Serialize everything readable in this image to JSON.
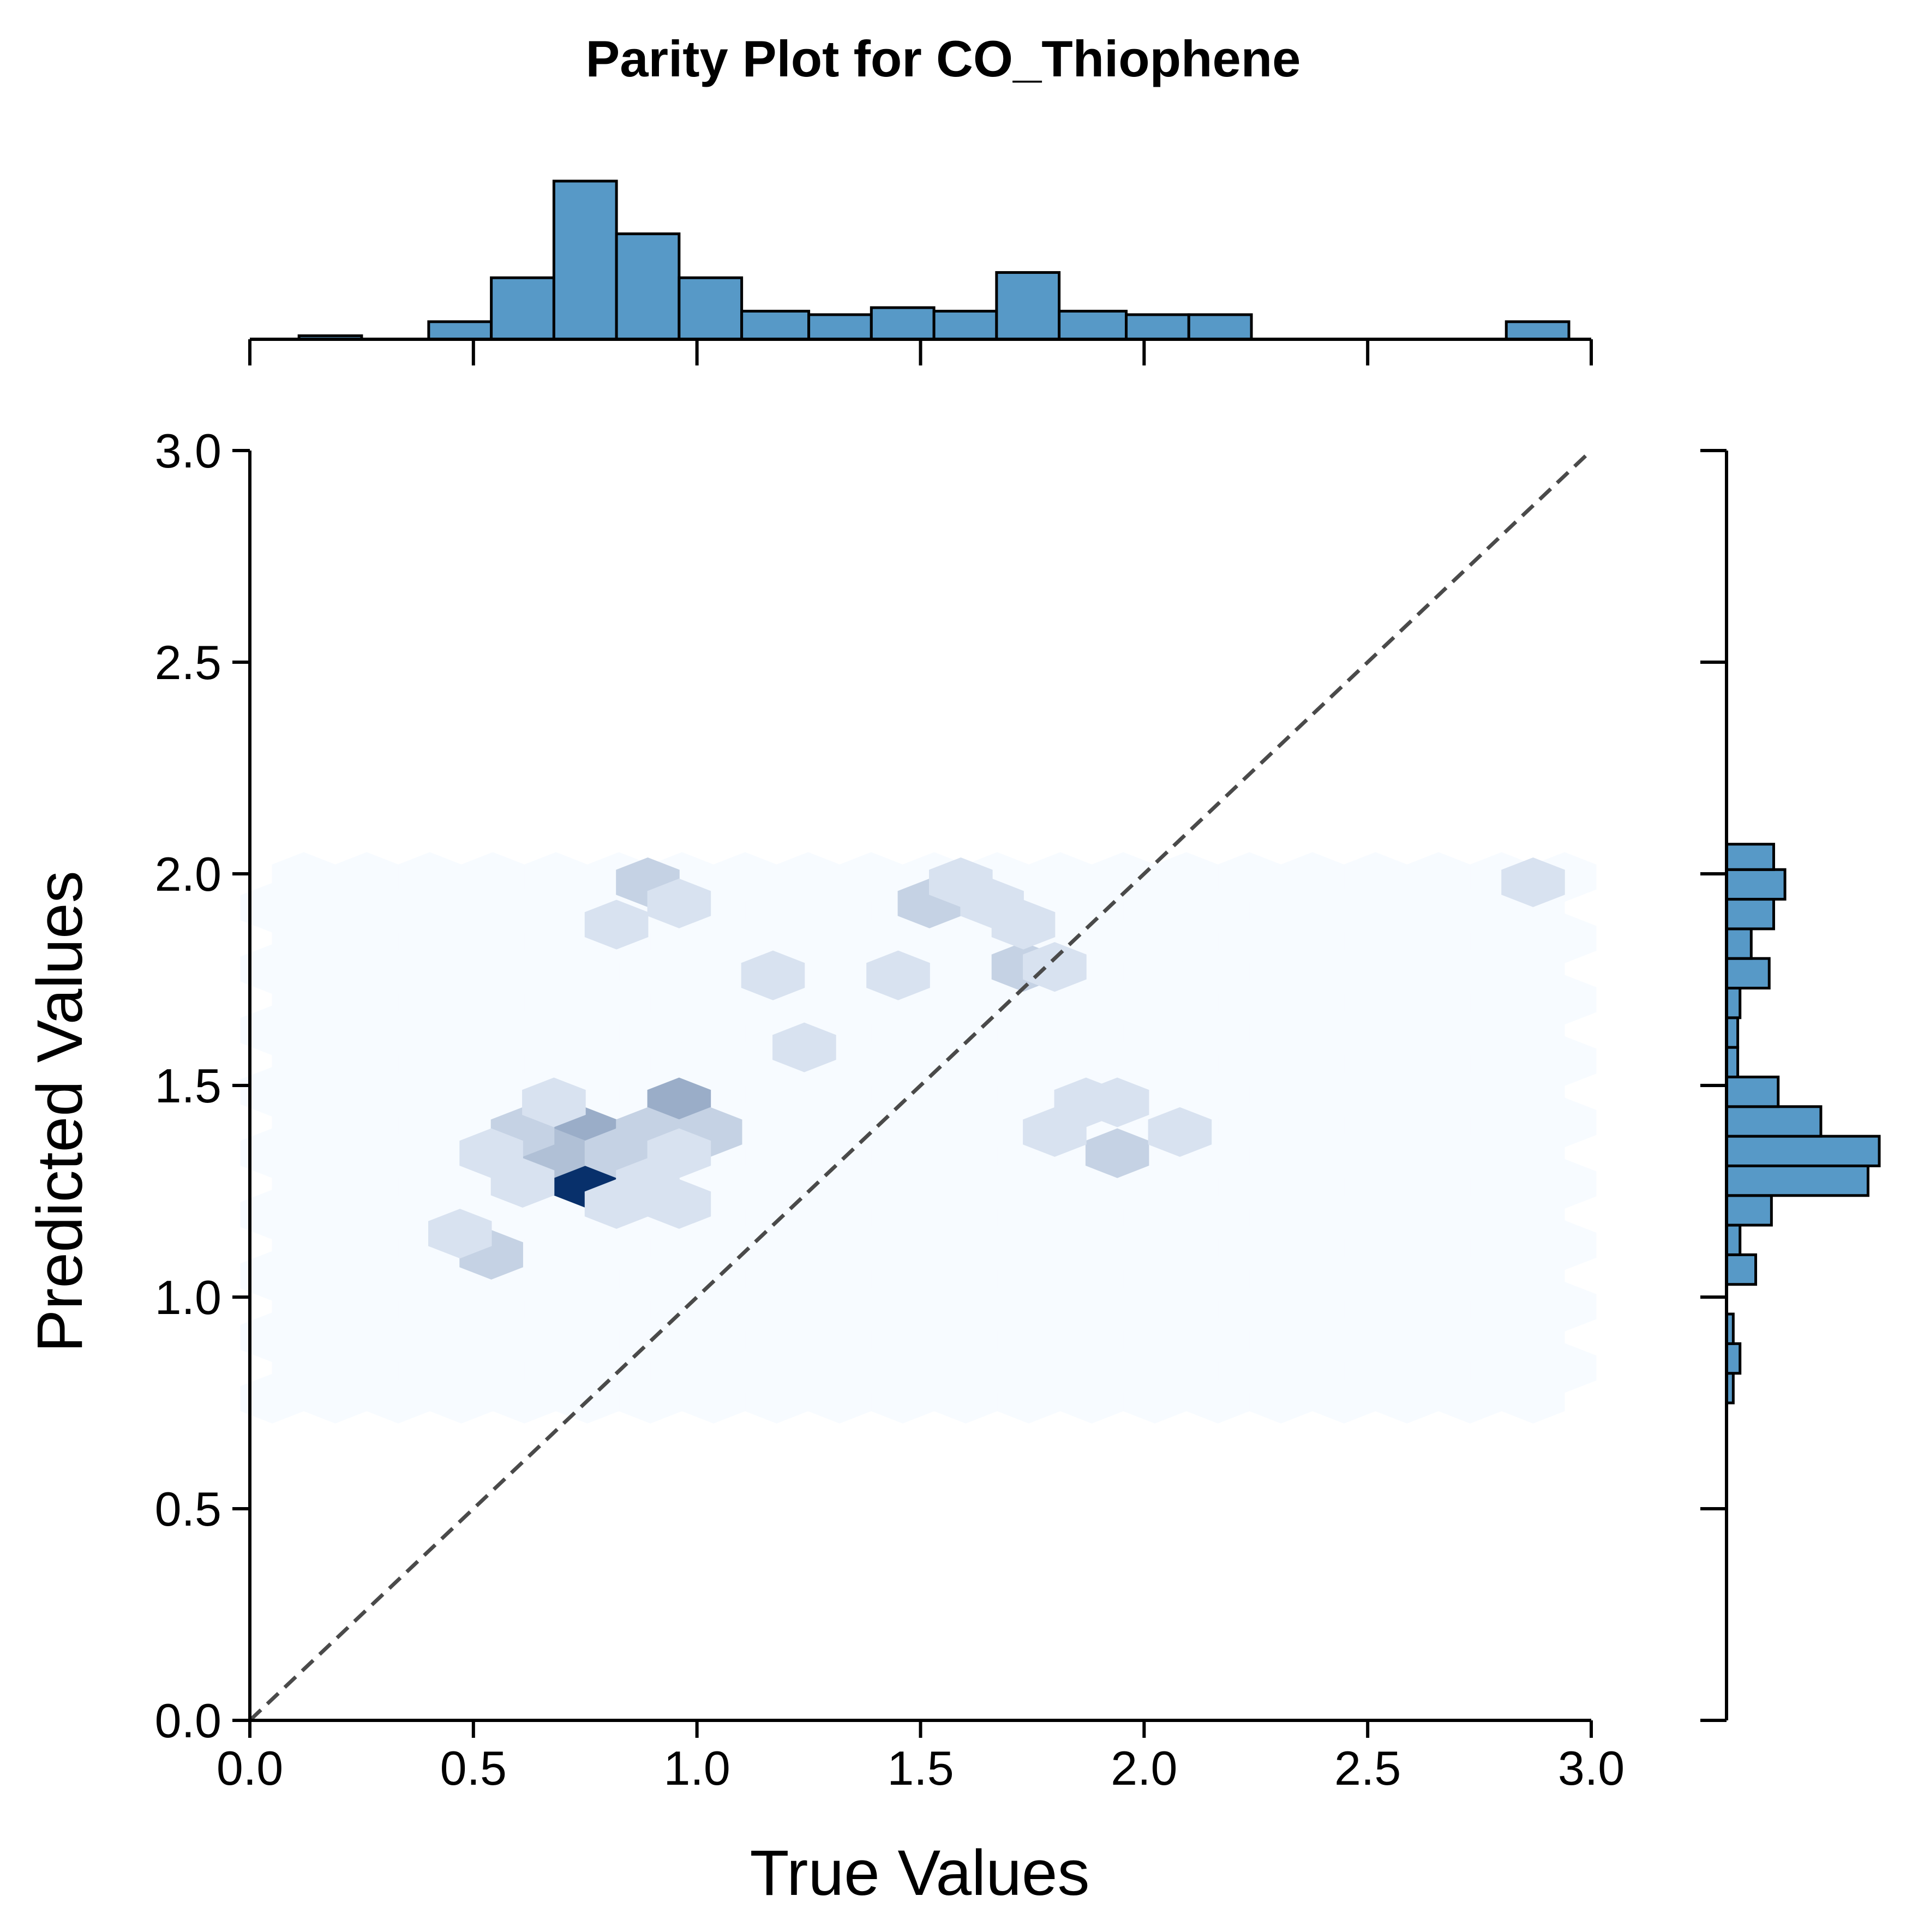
{
  "chart_data": {
    "type": "hexbin",
    "title": "Parity Plot for CO_Thiophene",
    "xlabel": "True Values",
    "ylabel": "Predicted Values",
    "xlim": [
      0.0,
      3.0
    ],
    "ylim": [
      0.0,
      3.0
    ],
    "xticks": [
      "0.0",
      "0.5",
      "1.0",
      "1.5",
      "2.0",
      "2.5",
      "3.0"
    ],
    "yticks": [
      "0.0",
      "0.5",
      "1.0",
      "1.5",
      "2.0",
      "2.5",
      "3.0"
    ],
    "grid": false,
    "parity_line": {
      "from": [
        0,
        0
      ],
      "to": [
        3,
        3
      ],
      "style": "dashed",
      "color": "#4a4a4a"
    },
    "colormap": "Blues",
    "hex_counts": [
      {
        "x": 0.75,
        "y": 1.27,
        "count": 10
      },
      {
        "x": 0.75,
        "y": 1.39,
        "count": 4
      },
      {
        "x": 0.68,
        "y": 1.34,
        "count": 3
      },
      {
        "x": 0.82,
        "y": 1.34,
        "count": 2
      },
      {
        "x": 0.61,
        "y": 1.39,
        "count": 2
      },
      {
        "x": 0.96,
        "y": 1.46,
        "count": 4
      },
      {
        "x": 0.89,
        "y": 1.39,
        "count": 2
      },
      {
        "x": 1.03,
        "y": 1.39,
        "count": 2
      },
      {
        "x": 0.96,
        "y": 1.34,
        "count": 1
      },
      {
        "x": 0.68,
        "y": 1.46,
        "count": 1
      },
      {
        "x": 0.89,
        "y": 1.27,
        "count": 1
      },
      {
        "x": 0.54,
        "y": 1.34,
        "count": 1
      },
      {
        "x": 0.61,
        "y": 1.27,
        "count": 1
      },
      {
        "x": 0.82,
        "y": 1.22,
        "count": 1
      },
      {
        "x": 0.96,
        "y": 1.22,
        "count": 1
      },
      {
        "x": 0.54,
        "y": 1.1,
        "count": 2
      },
      {
        "x": 0.47,
        "y": 1.15,
        "count": 1
      },
      {
        "x": 0.89,
        "y": 1.98,
        "count": 2
      },
      {
        "x": 0.96,
        "y": 1.93,
        "count": 1
      },
      {
        "x": 0.82,
        "y": 1.88,
        "count": 1
      },
      {
        "x": 1.52,
        "y": 1.93,
        "count": 2
      },
      {
        "x": 1.59,
        "y": 1.98,
        "count": 1
      },
      {
        "x": 1.66,
        "y": 1.93,
        "count": 1
      },
      {
        "x": 1.73,
        "y": 1.78,
        "count": 2
      },
      {
        "x": 1.8,
        "y": 1.78,
        "count": 1
      },
      {
        "x": 1.73,
        "y": 1.88,
        "count": 1
      },
      {
        "x": 1.45,
        "y": 1.76,
        "count": 1
      },
      {
        "x": 1.24,
        "y": 1.59,
        "count": 1
      },
      {
        "x": 1.17,
        "y": 1.76,
        "count": 1
      },
      {
        "x": 1.94,
        "y": 1.34,
        "count": 2
      },
      {
        "x": 1.94,
        "y": 1.46,
        "count": 1
      },
      {
        "x": 2.08,
        "y": 1.39,
        "count": 1
      },
      {
        "x": 1.8,
        "y": 1.39,
        "count": 1
      },
      {
        "x": 1.87,
        "y": 1.46,
        "count": 1
      },
      {
        "x": 2.87,
        "y": 1.98,
        "count": 1
      }
    ],
    "top_histogram": {
      "axis": "x",
      "bin_edges": [
        0.11,
        0.25,
        0.4,
        0.54,
        0.68,
        0.82,
        0.96,
        1.1,
        1.25,
        1.39,
        1.53,
        1.67,
        1.81,
        1.96,
        2.1,
        2.24,
        2.38,
        2.53,
        2.67,
        2.81,
        2.95
      ],
      "counts": [
        0.2,
        0,
        1,
        3.5,
        9,
        6,
        3.5,
        1.6,
        1.4,
        1.8,
        1.6,
        3.8,
        1.6,
        1.4,
        1.4,
        0,
        0,
        0,
        0,
        1
      ]
    },
    "right_histogram": {
      "axis": "y",
      "bin_edges": [
        0.75,
        0.82,
        0.89,
        0.96,
        1.03,
        1.1,
        1.17,
        1.24,
        1.31,
        1.38,
        1.45,
        1.52,
        1.59,
        1.66,
        1.73,
        1.8,
        1.87,
        1.94,
        2.01,
        2.07
      ],
      "counts": [
        0.3,
        0.6,
        0.3,
        0,
        1.3,
        0.6,
        2.0,
        6.3,
        6.8,
        4.2,
        2.3,
        0.5,
        0.5,
        0.6,
        1.9,
        1.1,
        2.1,
        2.6,
        2.1
      ]
    },
    "colors": {
      "hist_fill": "#5799c7",
      "hist_edge": "#000000",
      "hex_min": "#f7fbff",
      "hex_max": "#08306b",
      "parity_line": "#4a4a4a"
    }
  }
}
